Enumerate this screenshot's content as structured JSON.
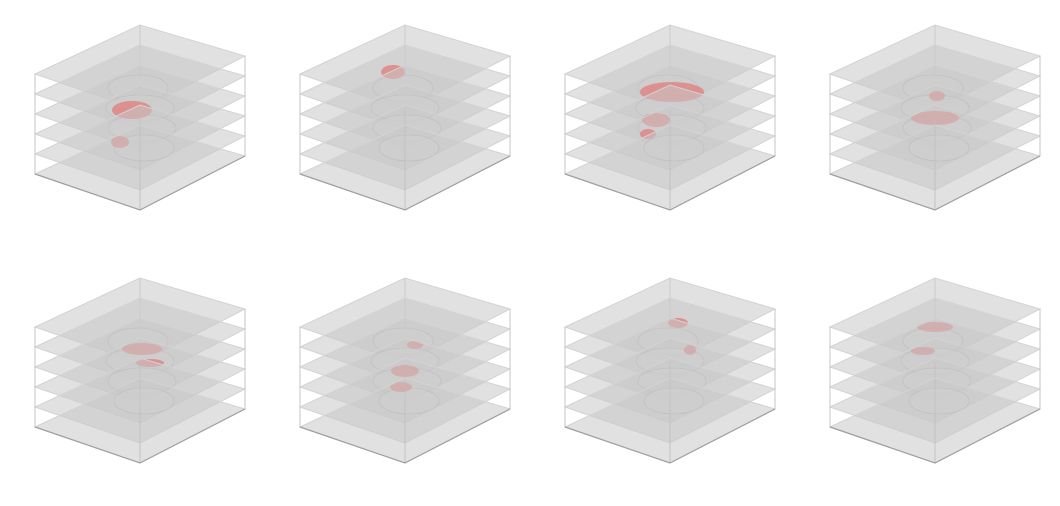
{
  "figure": {
    "rows": 2,
    "columns": 4,
    "panel_count": 8,
    "slices_per_volume": 6,
    "colors": {
      "background": "#ffffff",
      "slice_fill": "#c8c8c8",
      "slice_edge": "#d3d3d3",
      "box_edge": "#b9b9b9",
      "brain_outline": "#9a9a9a",
      "brain_fill": "#d9d9d9",
      "lesion": "#e07b7b"
    },
    "panels": [
      {
        "id": "panel-1",
        "lesion_slices": [
          3,
          4
        ]
      },
      {
        "id": "panel-2",
        "lesion_slices": [
          1
        ]
      },
      {
        "id": "panel-3",
        "lesion_slices": [
          2,
          3,
          4
        ]
      },
      {
        "id": "panel-4",
        "lesion_slices": [
          2,
          3
        ]
      },
      {
        "id": "panel-5",
        "lesion_slices": [
          2,
          3
        ]
      },
      {
        "id": "panel-6",
        "lesion_slices": [
          2,
          3,
          4
        ]
      },
      {
        "id": "panel-7",
        "lesion_slices": [
          1,
          2
        ]
      },
      {
        "id": "panel-8",
        "lesion_slices": [
          1,
          2
        ]
      }
    ]
  }
}
